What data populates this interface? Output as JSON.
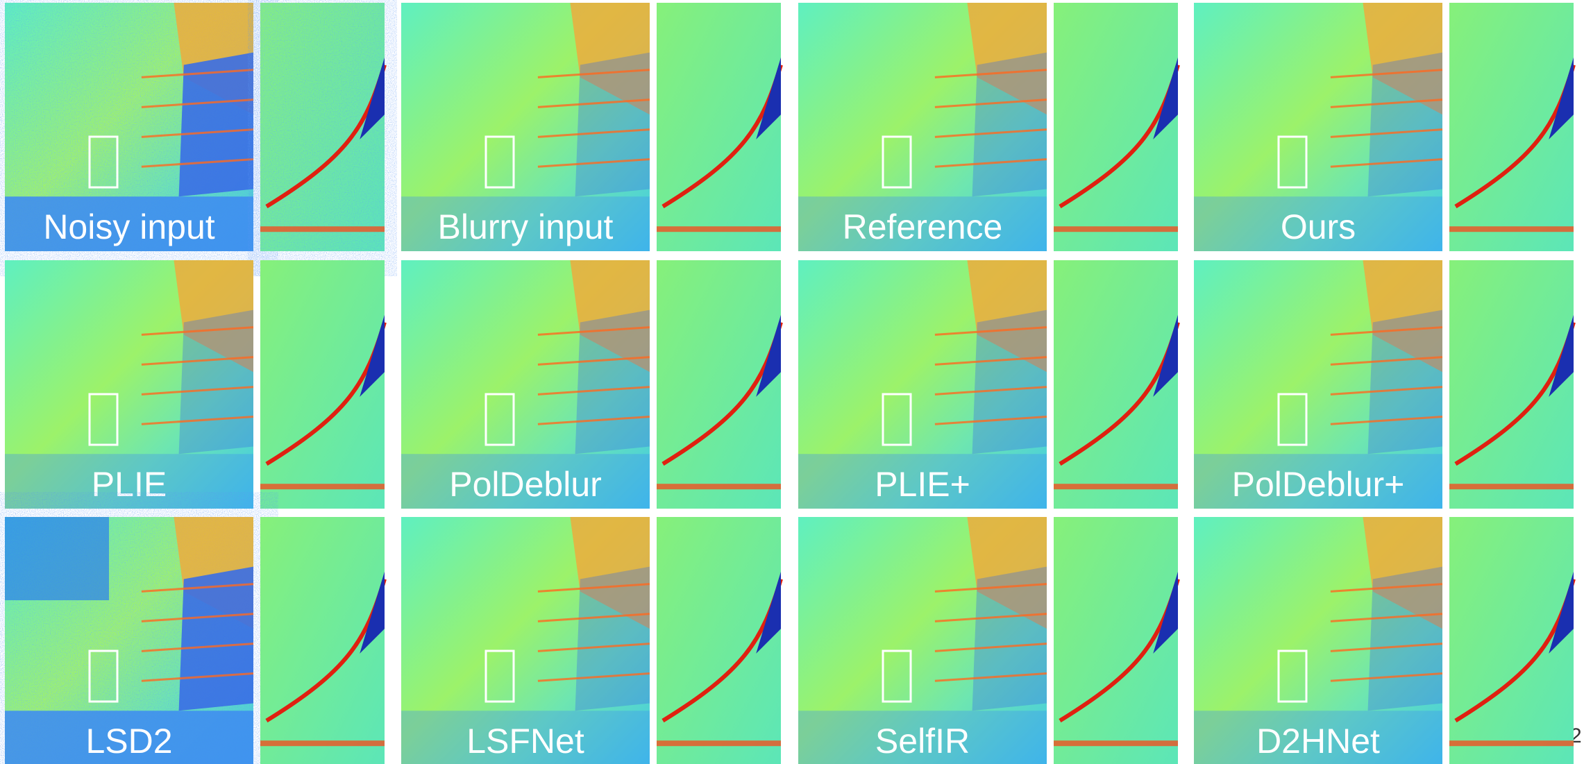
{
  "panels": [
    {
      "label": "Noisy input"
    },
    {
      "label": "Blurry input"
    },
    {
      "label": "Reference"
    },
    {
      "label": "Ours"
    },
    {
      "label": "PLIE"
    },
    {
      "label": "PolDeblur"
    },
    {
      "label": "PLIE+"
    },
    {
      "label": "PolDeblur+"
    },
    {
      "label": "LSD2"
    },
    {
      "label": "LSFNet"
    },
    {
      "label": "SelfIR"
    },
    {
      "label": "D2HNet"
    }
  ],
  "page_number": "2"
}
